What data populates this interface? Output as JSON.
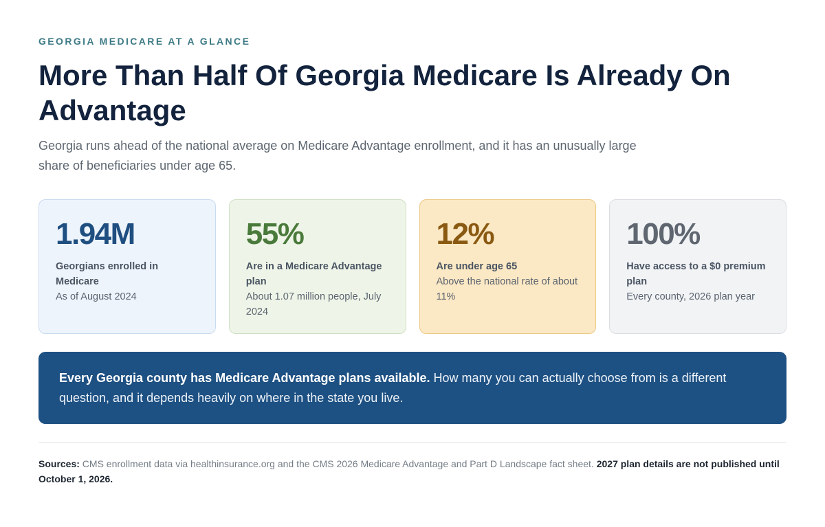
{
  "header": {
    "eyebrow": "GEORGIA MEDICARE AT A GLANCE",
    "title": "More Than Half Of Georgia Medicare Is Already On Advantage",
    "subtitle": "Georgia runs ahead of the national average on Medicare Advantage enrollment, and it has an unusually large share of beneficiaries under age 65."
  },
  "stats": [
    {
      "value": "1.94M",
      "label": "Georgians enrolled in Medicare",
      "detail": "As of August 2024"
    },
    {
      "value": "55%",
      "label": "Are in a Medicare Advantage plan",
      "detail": "About 1.07 million people, July 2024"
    },
    {
      "value": "12%",
      "label": "Are under age 65",
      "detail": "Above the national rate of about 11%"
    },
    {
      "value": "100%",
      "label": "Have access to a $0 premium plan",
      "detail": "Every county, 2026 plan year"
    }
  ],
  "banner": {
    "lead": "Every Georgia county has Medicare Advantage plans available.",
    "text": " How many you can actually choose from is a different question, and it depends heavily on where in the state you live."
  },
  "sources": {
    "label": "Sources:",
    "text": " CMS enrollment data via healthinsurance.org and the CMS 2026 Medicare Advantage and Part D Landscape fact sheet. ",
    "note": "2027 plan details are not published until October 1, 2026."
  },
  "colors": {
    "eyebrow": "#3d7a86",
    "title": "#13233d",
    "banner_bg": "#1e5183",
    "card_blue": "#1f4e80",
    "card_green": "#4a7a3b",
    "card_amber": "#8a5a12",
    "card_gray": "#5f6670"
  }
}
